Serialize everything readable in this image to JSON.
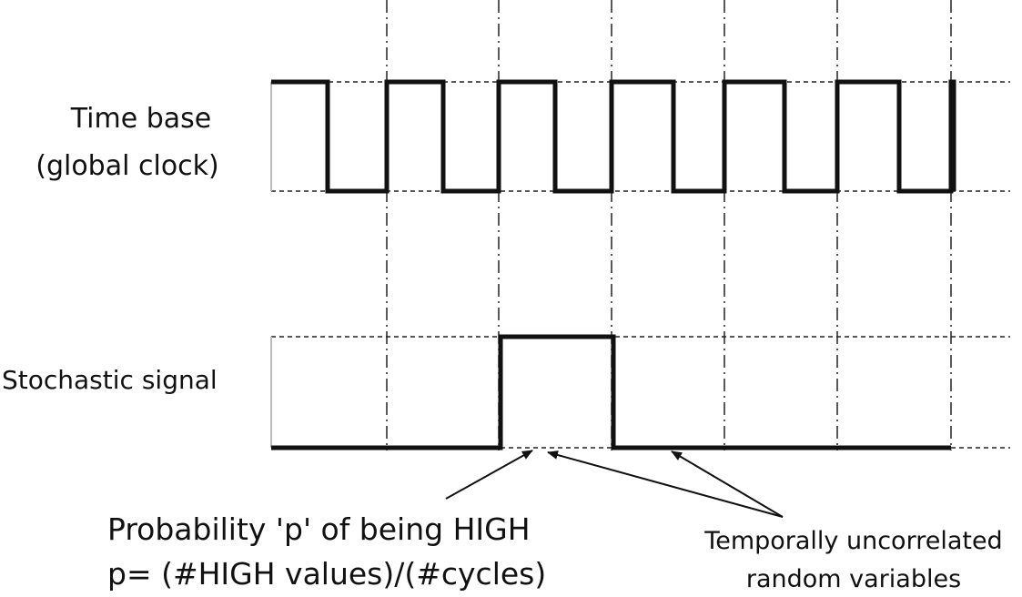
{
  "clock_label": [
    "Time base",
    "(global clock)"
  ],
  "signal_label": "Stochastic signal",
  "probability_note": [
    "Probability 'p' of being HIGH",
    "p= (#HIGH values)/(#cycles)"
  ],
  "uncorrelated_note": [
    "Temporally uncorrelated",
    "random variables"
  ]
}
